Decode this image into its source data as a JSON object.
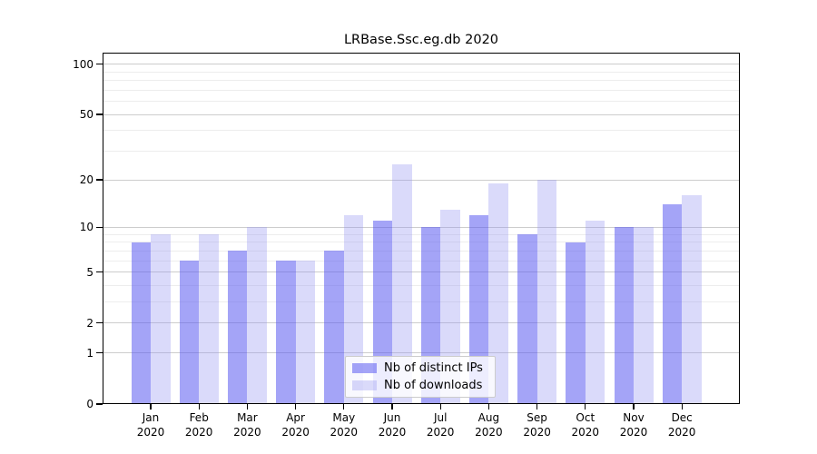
{
  "chart_data": {
    "type": "bar",
    "title": "LRBase.Ssc.eg.db 2020",
    "categories": [
      "Jan",
      "Feb",
      "Mar",
      "Apr",
      "May",
      "Jun",
      "Jul",
      "Aug",
      "Sep",
      "Oct",
      "Nov",
      "Dec"
    ],
    "x_tick_year": "2020",
    "series": [
      {
        "name": "Nb of distinct IPs",
        "color": "rgba(90,90,240,0.55)",
        "values": [
          8,
          6,
          7,
          6,
          7,
          11,
          10,
          12,
          9,
          8,
          10,
          14
        ]
      },
      {
        "name": "Nb of downloads",
        "color": "rgba(150,150,240,0.35)",
        "values": [
          9,
          9,
          10,
          6,
          12,
          25,
          13,
          19,
          20,
          11,
          10,
          16
        ]
      }
    ],
    "yscale": "log1p",
    "ylim": [
      0,
      117
    ],
    "yticks": [
      0,
      1,
      2,
      5,
      10,
      20,
      50,
      100
    ],
    "yticks_minor": [
      3,
      4,
      6,
      7,
      8,
      9,
      30,
      40,
      60,
      70,
      80,
      90
    ],
    "grid": true,
    "legend_position": "lower center",
    "xlabel": "",
    "ylabel": ""
  },
  "style_colors": {
    "major_grid": "#cdcdcd",
    "minor_grid": "#ededed",
    "spine": "#000000",
    "background": "#ffffff"
  }
}
